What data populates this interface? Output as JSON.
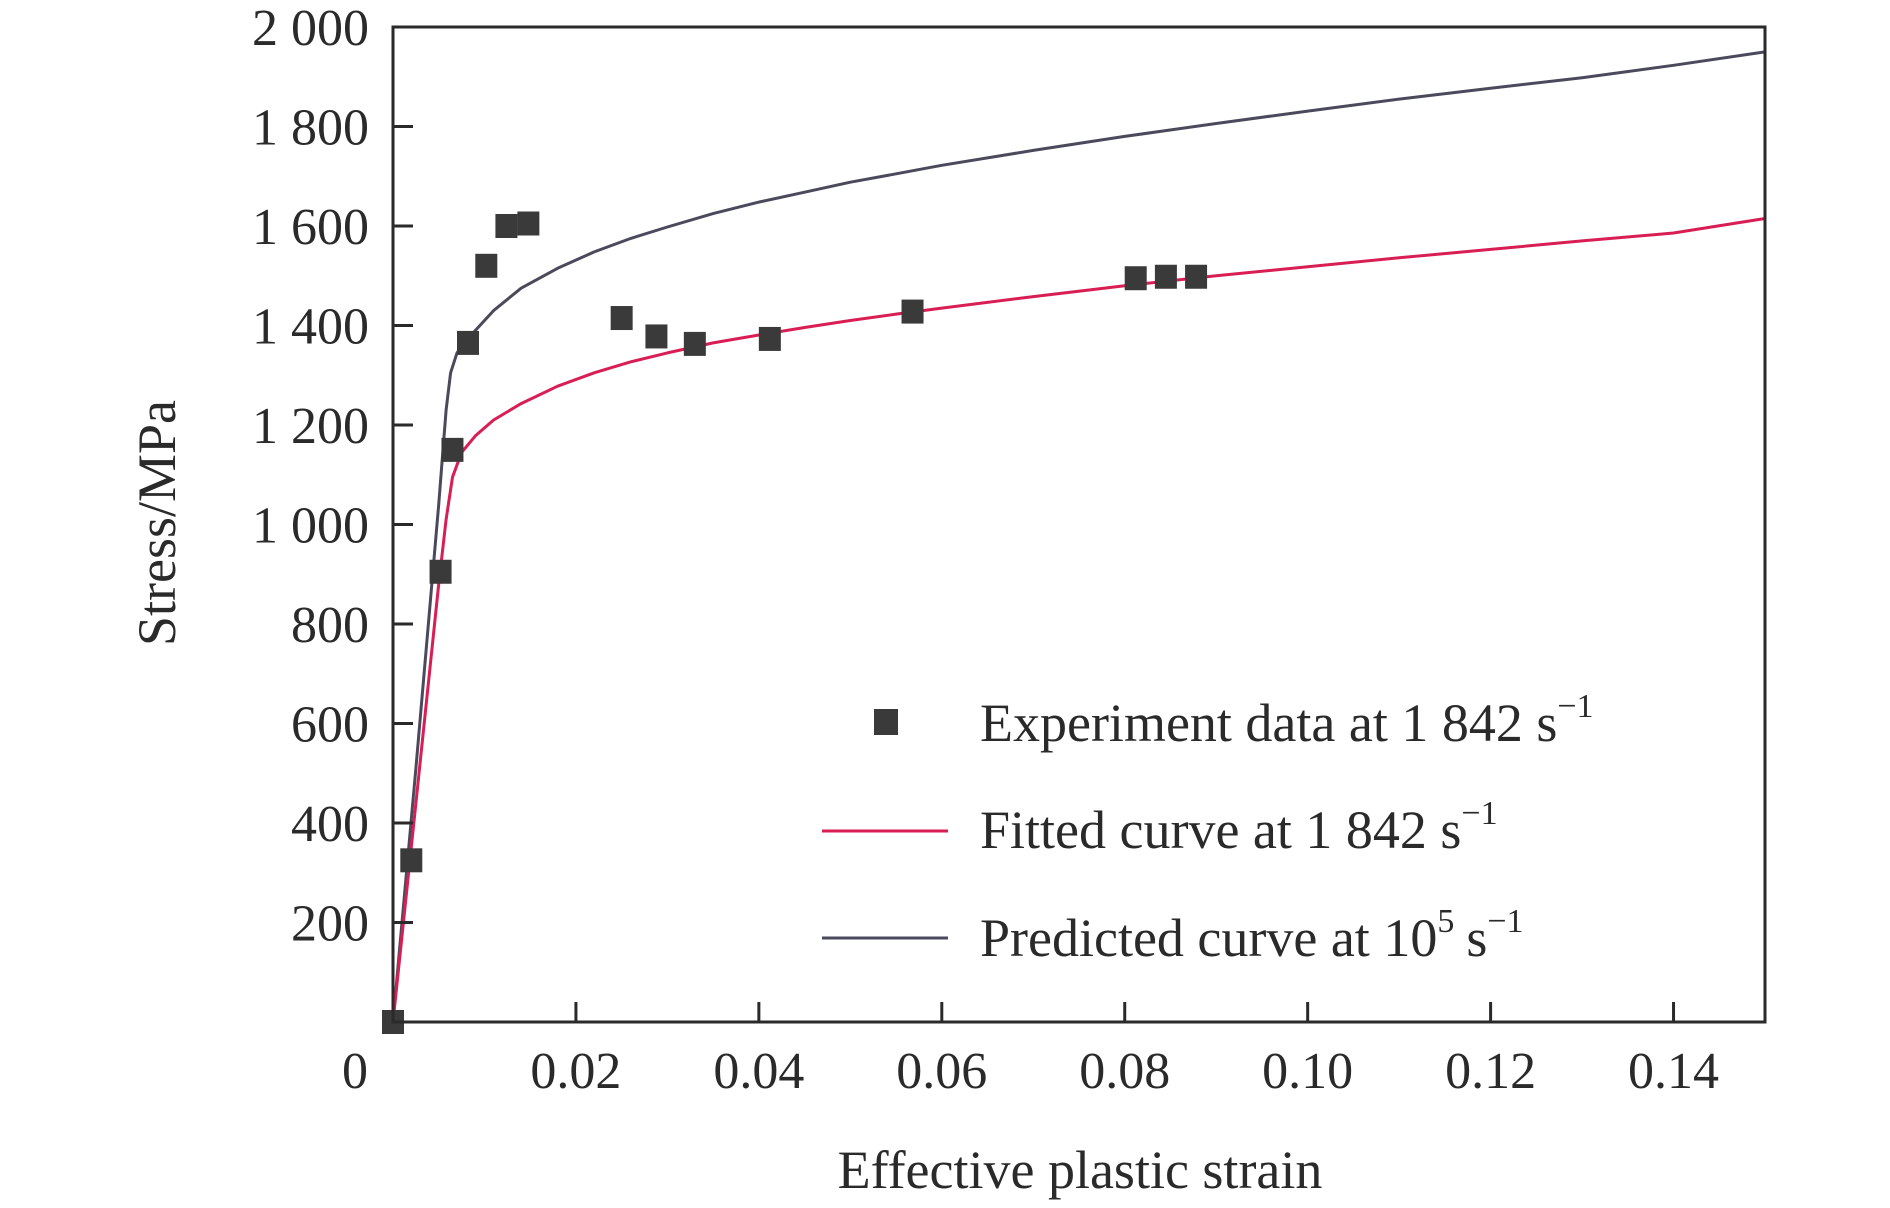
{
  "chart_data": {
    "type": "line",
    "title": "",
    "xlabel": "Effective plastic strain",
    "ylabel": "Stress/MPa",
    "xlim": [
      0,
      0.15
    ],
    "ylim": [
      0,
      2000
    ],
    "xticks": [
      {
        "value": 0,
        "label": "0"
      },
      {
        "value": 0.02,
        "label": "0.02"
      },
      {
        "value": 0.04,
        "label": "0.04"
      },
      {
        "value": 0.06,
        "label": "0.06"
      },
      {
        "value": 0.08,
        "label": "0.08"
      },
      {
        "value": 0.1,
        "label": "0.10"
      },
      {
        "value": 0.12,
        "label": "0.12"
      },
      {
        "value": 0.14,
        "label": "0.14"
      }
    ],
    "yticks": [
      {
        "value": 200,
        "label": "200"
      },
      {
        "value": 400,
        "label": "400"
      },
      {
        "value": 600,
        "label": "600"
      },
      {
        "value": 800,
        "label": "800"
      },
      {
        "value": 1000,
        "label": "1 000"
      },
      {
        "value": 1200,
        "label": "1 200"
      },
      {
        "value": 1400,
        "label": "1 400"
      },
      {
        "value": 1600,
        "label": "1 600"
      },
      {
        "value": 1800,
        "label": "1 800"
      },
      {
        "value": 2000,
        "label": "2 000"
      }
    ],
    "grid": false,
    "legend_position": "bottom-right",
    "series": [
      {
        "name": "Experiment data at 1 842 s",
        "name_superscript": "−1",
        "kind": "scatter",
        "marker": "square",
        "color": "#3a3a3a",
        "x": [
          0.0,
          0.002,
          0.0052,
          0.0065,
          0.0082,
          0.0102,
          0.0124,
          0.0148,
          0.025,
          0.0288,
          0.033,
          0.0412,
          0.0568,
          0.0812,
          0.0845,
          0.0878
        ],
        "y": [
          0,
          325,
          905,
          1150,
          1365,
          1520,
          1600,
          1605,
          1415,
          1378,
          1363,
          1373,
          1428,
          1495,
          1498,
          1498
        ]
      },
      {
        "name": "Fitted curve at 1 842 s",
        "name_superscript": "−1",
        "kind": "line",
        "color": "#d81e54",
        "x": [
          0,
          0.0025,
          0.005,
          0.0058,
          0.0065,
          0.0075,
          0.009,
          0.011,
          0.014,
          0.018,
          0.022,
          0.026,
          0.03,
          0.035,
          0.04,
          0.045,
          0.05,
          0.055,
          0.06,
          0.07,
          0.08,
          0.09,
          0.1,
          0.11,
          0.12,
          0.13,
          0.14,
          0.15
        ],
        "y": [
          0,
          440,
          880,
          1010,
          1095,
          1145,
          1178,
          1210,
          1243,
          1278,
          1305,
          1327,
          1345,
          1365,
          1381,
          1396,
          1410,
          1423,
          1435,
          1458,
          1480,
          1500,
          1518,
          1536,
          1553,
          1570,
          1586,
          1615
        ]
      },
      {
        "name": "Predicted curve at 10",
        "name_superscript": "5",
        "name_suffix": "s",
        "name_suffix_superscript": "−1",
        "kind": "line",
        "color": "#4a4a5c",
        "x": [
          0,
          0.0025,
          0.005,
          0.0058,
          0.0063,
          0.007,
          0.008,
          0.009,
          0.011,
          0.014,
          0.018,
          0.022,
          0.026,
          0.03,
          0.035,
          0.04,
          0.045,
          0.05,
          0.055,
          0.06,
          0.07,
          0.08,
          0.09,
          0.1,
          0.11,
          0.12,
          0.13,
          0.14,
          0.15
        ],
        "y": [
          0,
          510,
          1040,
          1230,
          1305,
          1345,
          1370,
          1390,
          1430,
          1475,
          1515,
          1548,
          1575,
          1598,
          1625,
          1648,
          1668,
          1688,
          1705,
          1722,
          1752,
          1780,
          1806,
          1831,
          1855,
          1877,
          1898,
          1923,
          1950
        ]
      }
    ]
  }
}
